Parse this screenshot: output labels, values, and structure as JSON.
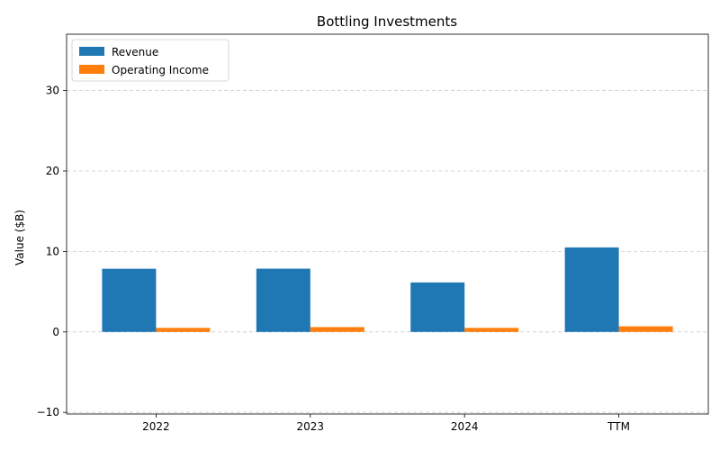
{
  "chart_data": {
    "type": "bar",
    "title": "Bottling Investments",
    "xlabel": "",
    "ylabel": "Value ($B)",
    "categories": [
      "2022",
      "2023",
      "2024",
      "TTM"
    ],
    "series": [
      {
        "name": "Revenue",
        "color": "#1f77b4",
        "values": [
          7.85,
          7.86,
          6.15,
          10.5
        ]
      },
      {
        "name": "Operating Income",
        "color": "#ff7f0e",
        "values": [
          0.5,
          0.6,
          0.5,
          0.7
        ]
      }
    ],
    "ylim": [
      -10.2,
      37
    ],
    "yticks": [
      -10,
      0,
      10,
      20,
      30
    ],
    "grid": "y-dashed",
    "legend_position": "top-left"
  }
}
